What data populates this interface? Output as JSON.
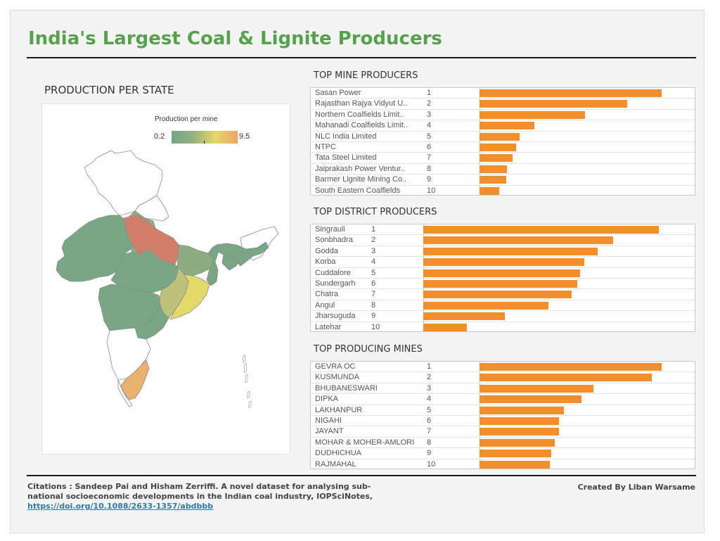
{
  "header": {
    "title": "India's Largest Coal & Lignite Producers"
  },
  "map": {
    "title": "PRODUCTION PER STATE",
    "legend": {
      "title": "Production per mine",
      "min": "0.2",
      "max": "9.5"
    },
    "colors": {
      "high": "#d27f6a",
      "orange": "#ebb170",
      "yellow": "#e3d86a",
      "yellowgreen": "#bdc27a",
      "green": "#79a685",
      "mid": "#8dac82",
      "empty": "#ffffff"
    }
  },
  "chart_data": [
    {
      "type": "bar",
      "title": "TOP MINE PRODUCERS",
      "categories": [
        "Sasan Power",
        "Rajasthan Rajya Vidyut U..",
        "Northern Coalfields Limit..",
        "Mahanadi Coalfields Limit..",
        "NLC India Limited",
        "NTPC",
        "Tata Steel Limited",
        "Jaiprakash Power Ventur..",
        "Barmer Lignite Mining Co..",
        "South Eastern Coalfields"
      ],
      "ranks": [
        "1",
        "2",
        "3",
        "4",
        "5",
        "6",
        "7",
        "8",
        "9",
        "10"
      ],
      "values": [
        100,
        81,
        58,
        30,
        22,
        20,
        18,
        15,
        14.5,
        11
      ],
      "xlim": [
        0,
        100
      ],
      "bar_color": "#f28e2b"
    },
    {
      "type": "bar",
      "title": "TOP DISTRICT PRODUCERS",
      "categories": [
        "Singrauli",
        "Sonbhadra",
        "Godda",
        "Korba",
        "Cuddalore",
        "Sundergarh",
        "Chatra",
        "Angul",
        "Jharsuguda",
        "Latehar"
      ],
      "ranks": [
        "1",
        "2",
        "3",
        "4",
        "5",
        "6",
        "7",
        "8",
        "9",
        "10"
      ],
      "values": [
        100,
        80.5,
        74,
        68.5,
        66.5,
        65.5,
        63,
        53,
        34.5,
        18.5
      ],
      "xlim": [
        0,
        100
      ],
      "bar_color": "#f28e2b"
    },
    {
      "type": "bar",
      "title": "TOP PRODUCING MINES",
      "categories": [
        "GEVRA OC",
        "KUSMUNDA",
        "BHUBANESWARI",
        "DIPKA",
        "LAKHANPUR",
        "NIGAHI",
        "JAYANT",
        "MOHAR & MOHER-AMLORI",
        "DUDHICHUA",
        "RAJMAHAL"
      ],
      "ranks": [
        "1",
        "2",
        "3",
        "4",
        "5",
        "6",
        "7",
        "8",
        "9",
        "10"
      ],
      "values": [
        100,
        94.5,
        62.5,
        56,
        46.5,
        43.5,
        43.5,
        41.5,
        39.5,
        38.5
      ],
      "xlim": [
        0,
        100
      ],
      "bar_color": "#f28e2b"
    }
  ],
  "footer": {
    "citation_text": "Citations : Sandeep Pai and Hisham Zerriffi. A novel dataset for analysing sub-national socioeconomic developments in the Indian coal industry, IOPSciNotes, ",
    "citation_link": "https://doi.org/10.1088/2633-1357/abdbbb",
    "credit": "Created By Liban Warsame"
  }
}
